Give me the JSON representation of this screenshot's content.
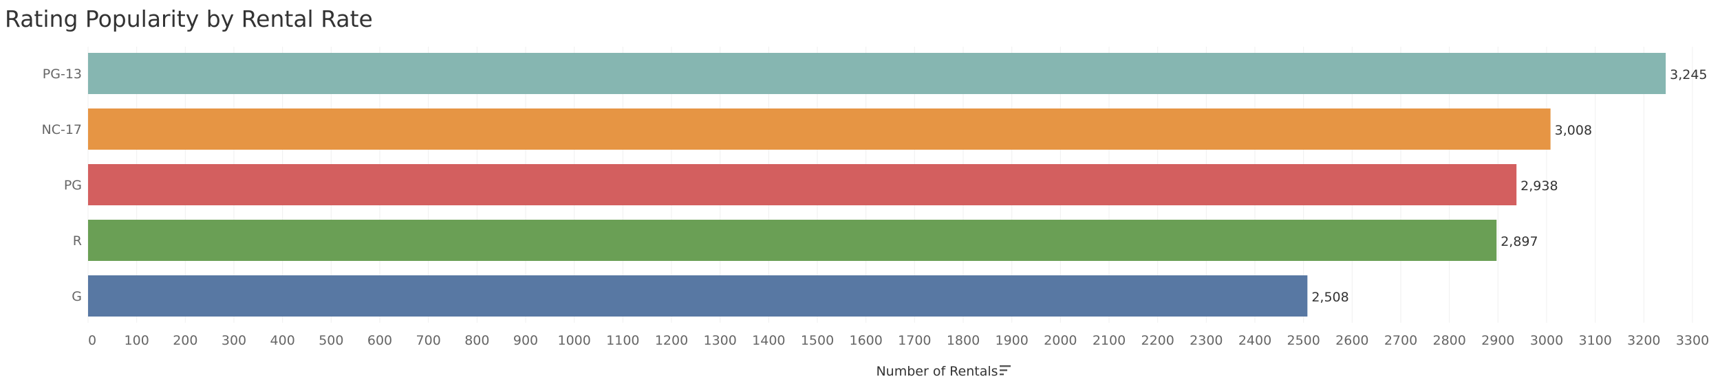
{
  "chart_data": {
    "type": "bar",
    "orientation": "horizontal",
    "title": "Rating Popularity by Rental Rate",
    "xlabel": "Number of Rentals",
    "ylabel": "",
    "categories": [
      "PG-13",
      "NC-17",
      "PG",
      "R",
      "G"
    ],
    "values": [
      3245,
      3008,
      2938,
      2897,
      2508
    ],
    "value_labels": [
      "3,245",
      "3,008",
      "2,938",
      "2,897",
      "2,508"
    ],
    "colors": [
      "#86b6b1",
      "#e69544",
      "#d35f5f",
      "#6a9f55",
      "#5878a3"
    ],
    "xlim": [
      0,
      3300
    ],
    "xticks": [
      0,
      100,
      200,
      300,
      400,
      500,
      600,
      700,
      800,
      900,
      1000,
      1100,
      1200,
      1300,
      1400,
      1500,
      1600,
      1700,
      1800,
      1900,
      2000,
      2100,
      2200,
      2300,
      2400,
      2500,
      2600,
      2700,
      2800,
      2900,
      3000,
      3100,
      3200,
      3300
    ],
    "grid": true,
    "sorted": "descending",
    "sort_icon": "sort-descending-icon"
  }
}
